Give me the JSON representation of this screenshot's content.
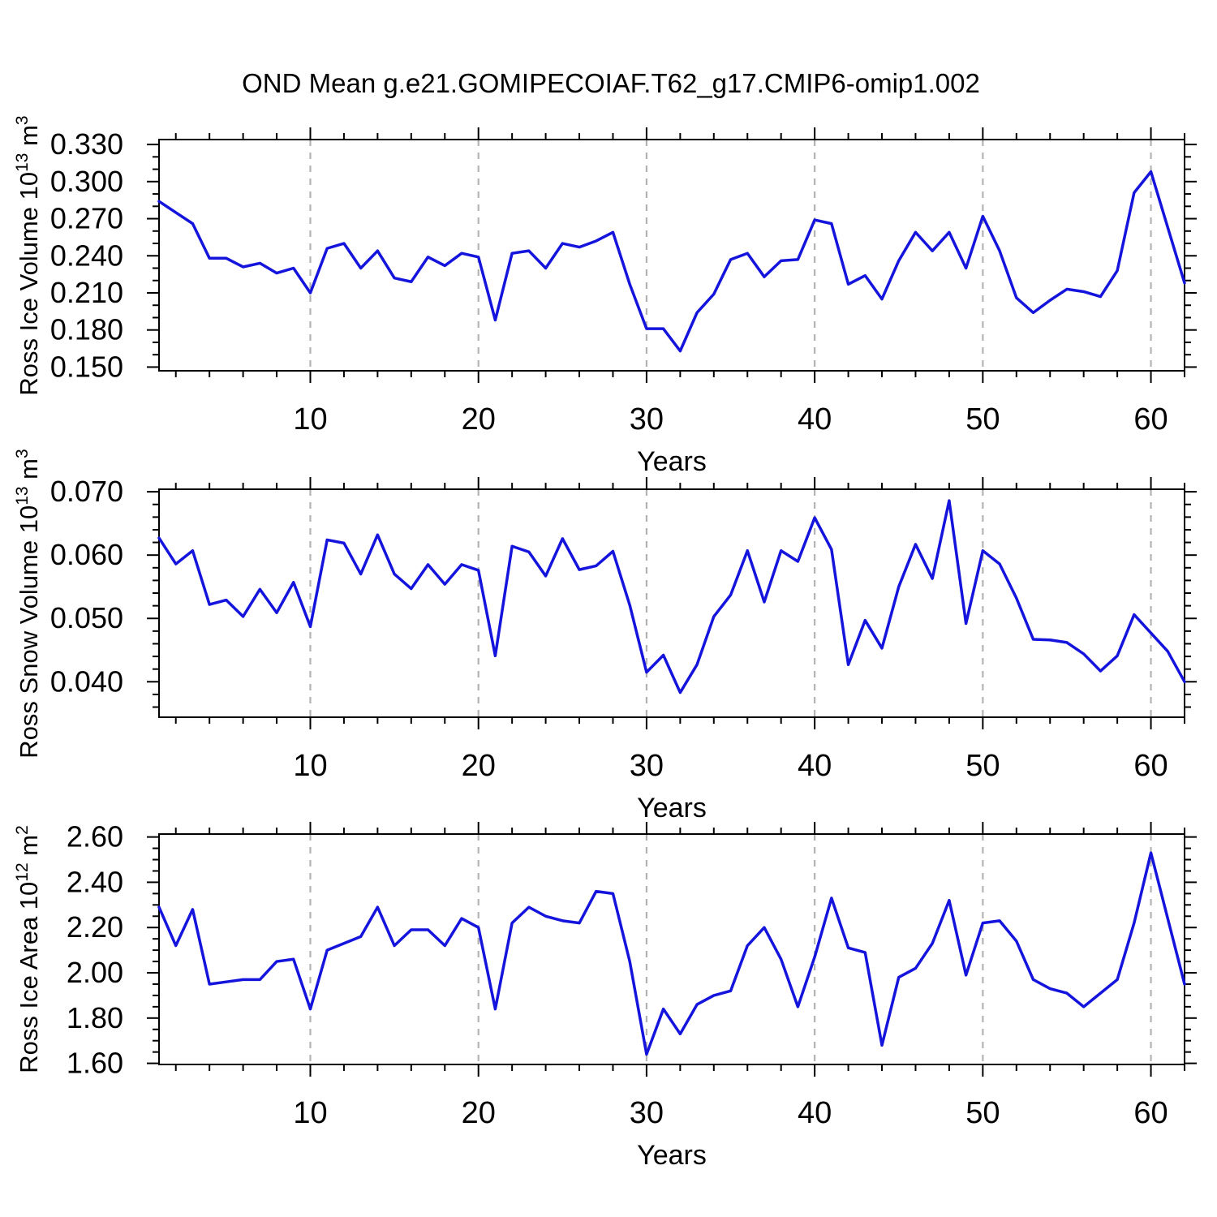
{
  "title": "OND Mean g.e21.GOMIPECOIAF.T62_g17.CMIP6-omip1.002",
  "colors": {
    "line": "#1414dc",
    "grid": "#b3b3b3",
    "axis": "#000000",
    "background": "#ffffff",
    "text": "#000000"
  },
  "chart_data": [
    {
      "type": "line",
      "panel": 1,
      "ylabel": "Ross Ice Volume 10¹³ m³",
      "ylabel_parts": [
        {
          "t": "Ross Ice Volume 10"
        },
        {
          "t": "13",
          "sup": true
        },
        {
          "t": " m"
        },
        {
          "t": "3",
          "sup": true
        }
      ],
      "xlabel": "Years",
      "xlim": [
        1,
        62
      ],
      "x_start": 1,
      "x_step": 1,
      "ylim": [
        0.147,
        0.334
      ],
      "yticks": [
        0.15,
        0.18,
        0.21,
        0.24,
        0.27,
        0.3,
        0.33
      ],
      "ytick_labels": [
        "0.150",
        "0.180",
        "0.210",
        "0.240",
        "0.270",
        "0.300",
        "0.330"
      ],
      "yminor_step": 0.01,
      "xticks": [
        10,
        20,
        30,
        40,
        50,
        60
      ],
      "xtick_labels": [
        "10",
        "20",
        "30",
        "40",
        "50",
        "60"
      ],
      "xminor_step": 2,
      "grid": "dashed-vertical-at-major-xticks",
      "legend": "none",
      "values": [
        0.284,
        0.275,
        0.266,
        0.238,
        0.238,
        0.231,
        0.234,
        0.226,
        0.23,
        0.21,
        0.246,
        0.25,
        0.23,
        0.244,
        0.222,
        0.219,
        0.239,
        0.232,
        0.242,
        0.239,
        0.188,
        0.242,
        0.244,
        0.23,
        0.25,
        0.247,
        0.252,
        0.259,
        0.217,
        0.181,
        0.181,
        0.163,
        0.194,
        0.209,
        0.237,
        0.242,
        0.223,
        0.236,
        0.237,
        0.269,
        0.266,
        0.217,
        0.224,
        0.205,
        0.236,
        0.259,
        0.244,
        0.259,
        0.23,
        0.272,
        0.244,
        0.206,
        0.194,
        0.204,
        0.213,
        0.211,
        0.207,
        0.228,
        0.291,
        0.308,
        0.263,
        0.218
      ]
    },
    {
      "type": "line",
      "panel": 2,
      "ylabel": "Ross Snow Volume 10¹³ m³",
      "ylabel_parts": [
        {
          "t": "Ross Snow Volume 10"
        },
        {
          "t": "13",
          "sup": true
        },
        {
          "t": " m"
        },
        {
          "t": "3",
          "sup": true
        }
      ],
      "xlabel": "Years",
      "xlim": [
        1,
        62
      ],
      "x_start": 1,
      "x_step": 1,
      "ylim": [
        0.0344,
        0.0704
      ],
      "yticks": [
        0.04,
        0.05,
        0.06,
        0.07
      ],
      "ytick_labels": [
        "0.040",
        "0.050",
        "0.060",
        "0.070"
      ],
      "yminor_step": 0.002,
      "xticks": [
        10,
        20,
        30,
        40,
        50,
        60
      ],
      "xtick_labels": [
        "10",
        "20",
        "30",
        "40",
        "50",
        "60"
      ],
      "xminor_step": 2,
      "grid": "dashed-vertical-at-major-xticks",
      "legend": "none",
      "values": [
        0.0627,
        0.0586,
        0.0607,
        0.0522,
        0.0529,
        0.0503,
        0.0546,
        0.0509,
        0.0557,
        0.0487,
        0.0624,
        0.0619,
        0.057,
        0.0632,
        0.057,
        0.0547,
        0.0585,
        0.0554,
        0.0585,
        0.0576,
        0.0441,
        0.0614,
        0.0605,
        0.0567,
        0.0626,
        0.0577,
        0.0583,
        0.0606,
        0.0521,
        0.0415,
        0.0442,
        0.0383,
        0.0427,
        0.0503,
        0.0537,
        0.0607,
        0.0526,
        0.0607,
        0.059,
        0.0659,
        0.0609,
        0.0427,
        0.0497,
        0.0453,
        0.055,
        0.0617,
        0.0563,
        0.0686,
        0.0492,
        0.0607,
        0.0586,
        0.0532,
        0.0467,
        0.0466,
        0.0462,
        0.0444,
        0.0417,
        0.0441,
        0.0506,
        0.0477,
        0.0448,
        0.04
      ]
    },
    {
      "type": "line",
      "panel": 3,
      "ylabel": "Ross Ice Area 10¹² m²",
      "ylabel_parts": [
        {
          "t": "Ross Ice Area 10"
        },
        {
          "t": "12",
          "sup": true
        },
        {
          "t": " m"
        },
        {
          "t": "2",
          "sup": true
        }
      ],
      "xlabel": "Years",
      "xlim": [
        1,
        62
      ],
      "x_start": 1,
      "x_step": 1,
      "ylim": [
        1.595,
        2.613
      ],
      "yticks": [
        1.6,
        1.8,
        2.0,
        2.2,
        2.4,
        2.6
      ],
      "ytick_labels": [
        "1.60",
        "1.80",
        "2.00",
        "2.20",
        "2.40",
        "2.60"
      ],
      "yminor_step": 0.05,
      "xticks": [
        10,
        20,
        30,
        40,
        50,
        60
      ],
      "xtick_labels": [
        "10",
        "20",
        "30",
        "40",
        "50",
        "60"
      ],
      "xminor_step": 2,
      "grid": "dashed-vertical-at-major-xticks",
      "legend": "none",
      "values": [
        2.29,
        2.12,
        2.28,
        1.95,
        1.96,
        1.97,
        1.97,
        2.05,
        2.06,
        1.84,
        2.1,
        2.13,
        2.16,
        2.29,
        2.12,
        2.19,
        2.19,
        2.12,
        2.24,
        2.2,
        1.84,
        2.22,
        2.29,
        2.25,
        2.23,
        2.22,
        2.36,
        2.35,
        2.05,
        1.64,
        1.84,
        1.73,
        1.86,
        1.9,
        1.92,
        2.12,
        2.2,
        2.06,
        1.85,
        2.07,
        2.33,
        2.11,
        2.09,
        1.68,
        1.98,
        2.02,
        2.13,
        2.32,
        1.99,
        2.22,
        2.23,
        2.14,
        1.97,
        1.93,
        1.91,
        1.85,
        1.91,
        1.97,
        2.22,
        2.53,
        2.24,
        1.95
      ]
    }
  ]
}
